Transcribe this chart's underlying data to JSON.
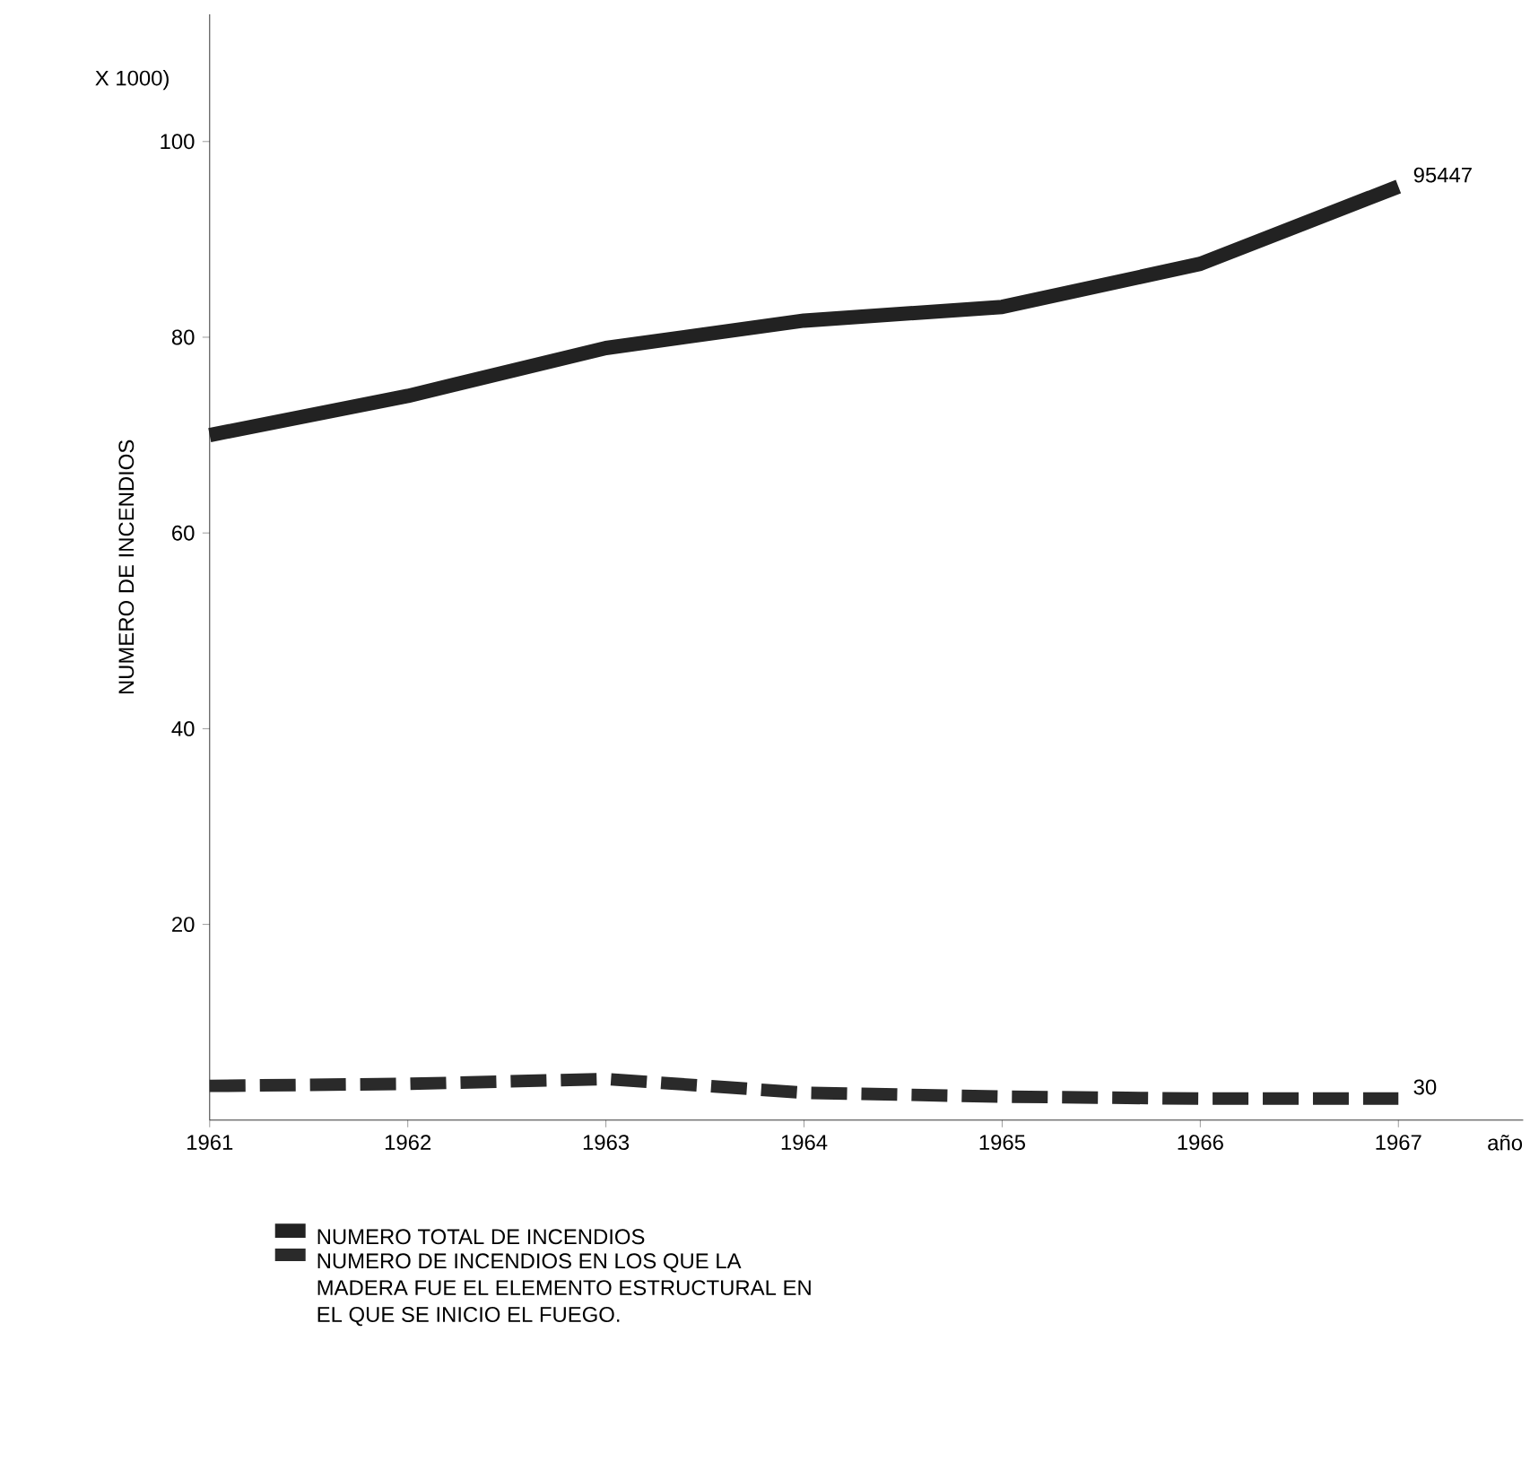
{
  "chart_data": {
    "type": "line",
    "ylabel": "NUMERO  DE  INCENDIOS",
    "xlabel": "año",
    "x": [
      1961,
      1962,
      1963,
      1964,
      1965,
      1966,
      1967
    ],
    "series": [
      {
        "name": "NUMERO TOTAL DE INCENDIOS",
        "color": "#222222",
        "line_style": "solid",
        "values": [
          70,
          74,
          78.9,
          81.7,
          83.1,
          87.5,
          95.4
        ]
      },
      {
        "name": "NUMERO DE INCENDIOS EN LOS QUE LA MADERA FUE EL ELEMENTO ESTRUCTURAL EN EL QUE SE INICIO EL FUEGO.",
        "color": "#2a2a2a",
        "line_style": "dashed",
        "values": [
          3.5,
          3.7,
          4.2,
          2.8,
          2.4,
          2.2,
          2.2
        ]
      }
    ],
    "xlim": [
      1961,
      1967.63
    ],
    "ylim": [
      0,
      113
    ],
    "xticks": [
      1961,
      1962,
      1963,
      1964,
      1965,
      1966,
      1967
    ],
    "yticks": [
      20,
      40,
      60,
      80,
      100
    ],
    "annotations": [
      "X 1000)",
      {
        "text": "95447",
        "x": 1967,
        "y": 95.4
      },
      {
        "text": "30",
        "x": 1967,
        "y": 2.2
      }
    ],
    "legend": "bottom",
    "marker": "none",
    "grid": false
  }
}
